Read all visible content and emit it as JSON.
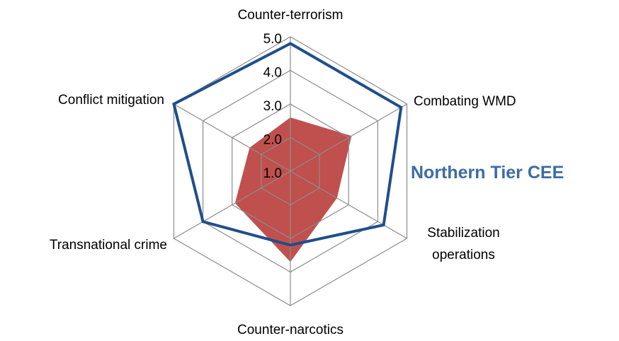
{
  "chart_data": {
    "type": "radar",
    "categories": [
      "Counter-terrorism",
      "Combating WMD",
      "Stabilization operations",
      "Counter-narcotics",
      "Transnational crime",
      "Conflict mitigation"
    ],
    "series": [
      {
        "color": "#c0504d",
        "values": [
          2.6,
          3.1,
          2.6,
          3.7,
          2.9,
          2.4
        ]
      },
      {
        "name": "Northern Tier CEE",
        "color": "#1f4e8c",
        "values": [
          4.8,
          4.8,
          4.2,
          3.2,
          4.0,
          5.0
        ]
      }
    ],
    "ylim": [
      1,
      5
    ],
    "yticks": [
      {
        "value": 1,
        "label": "1.0"
      },
      {
        "value": 2,
        "label": "2.0"
      },
      {
        "value": 3,
        "label": "3.0"
      },
      {
        "value": 4,
        "label": "4.0"
      },
      {
        "value": 5,
        "label": "5.0"
      }
    ],
    "grid": true
  }
}
